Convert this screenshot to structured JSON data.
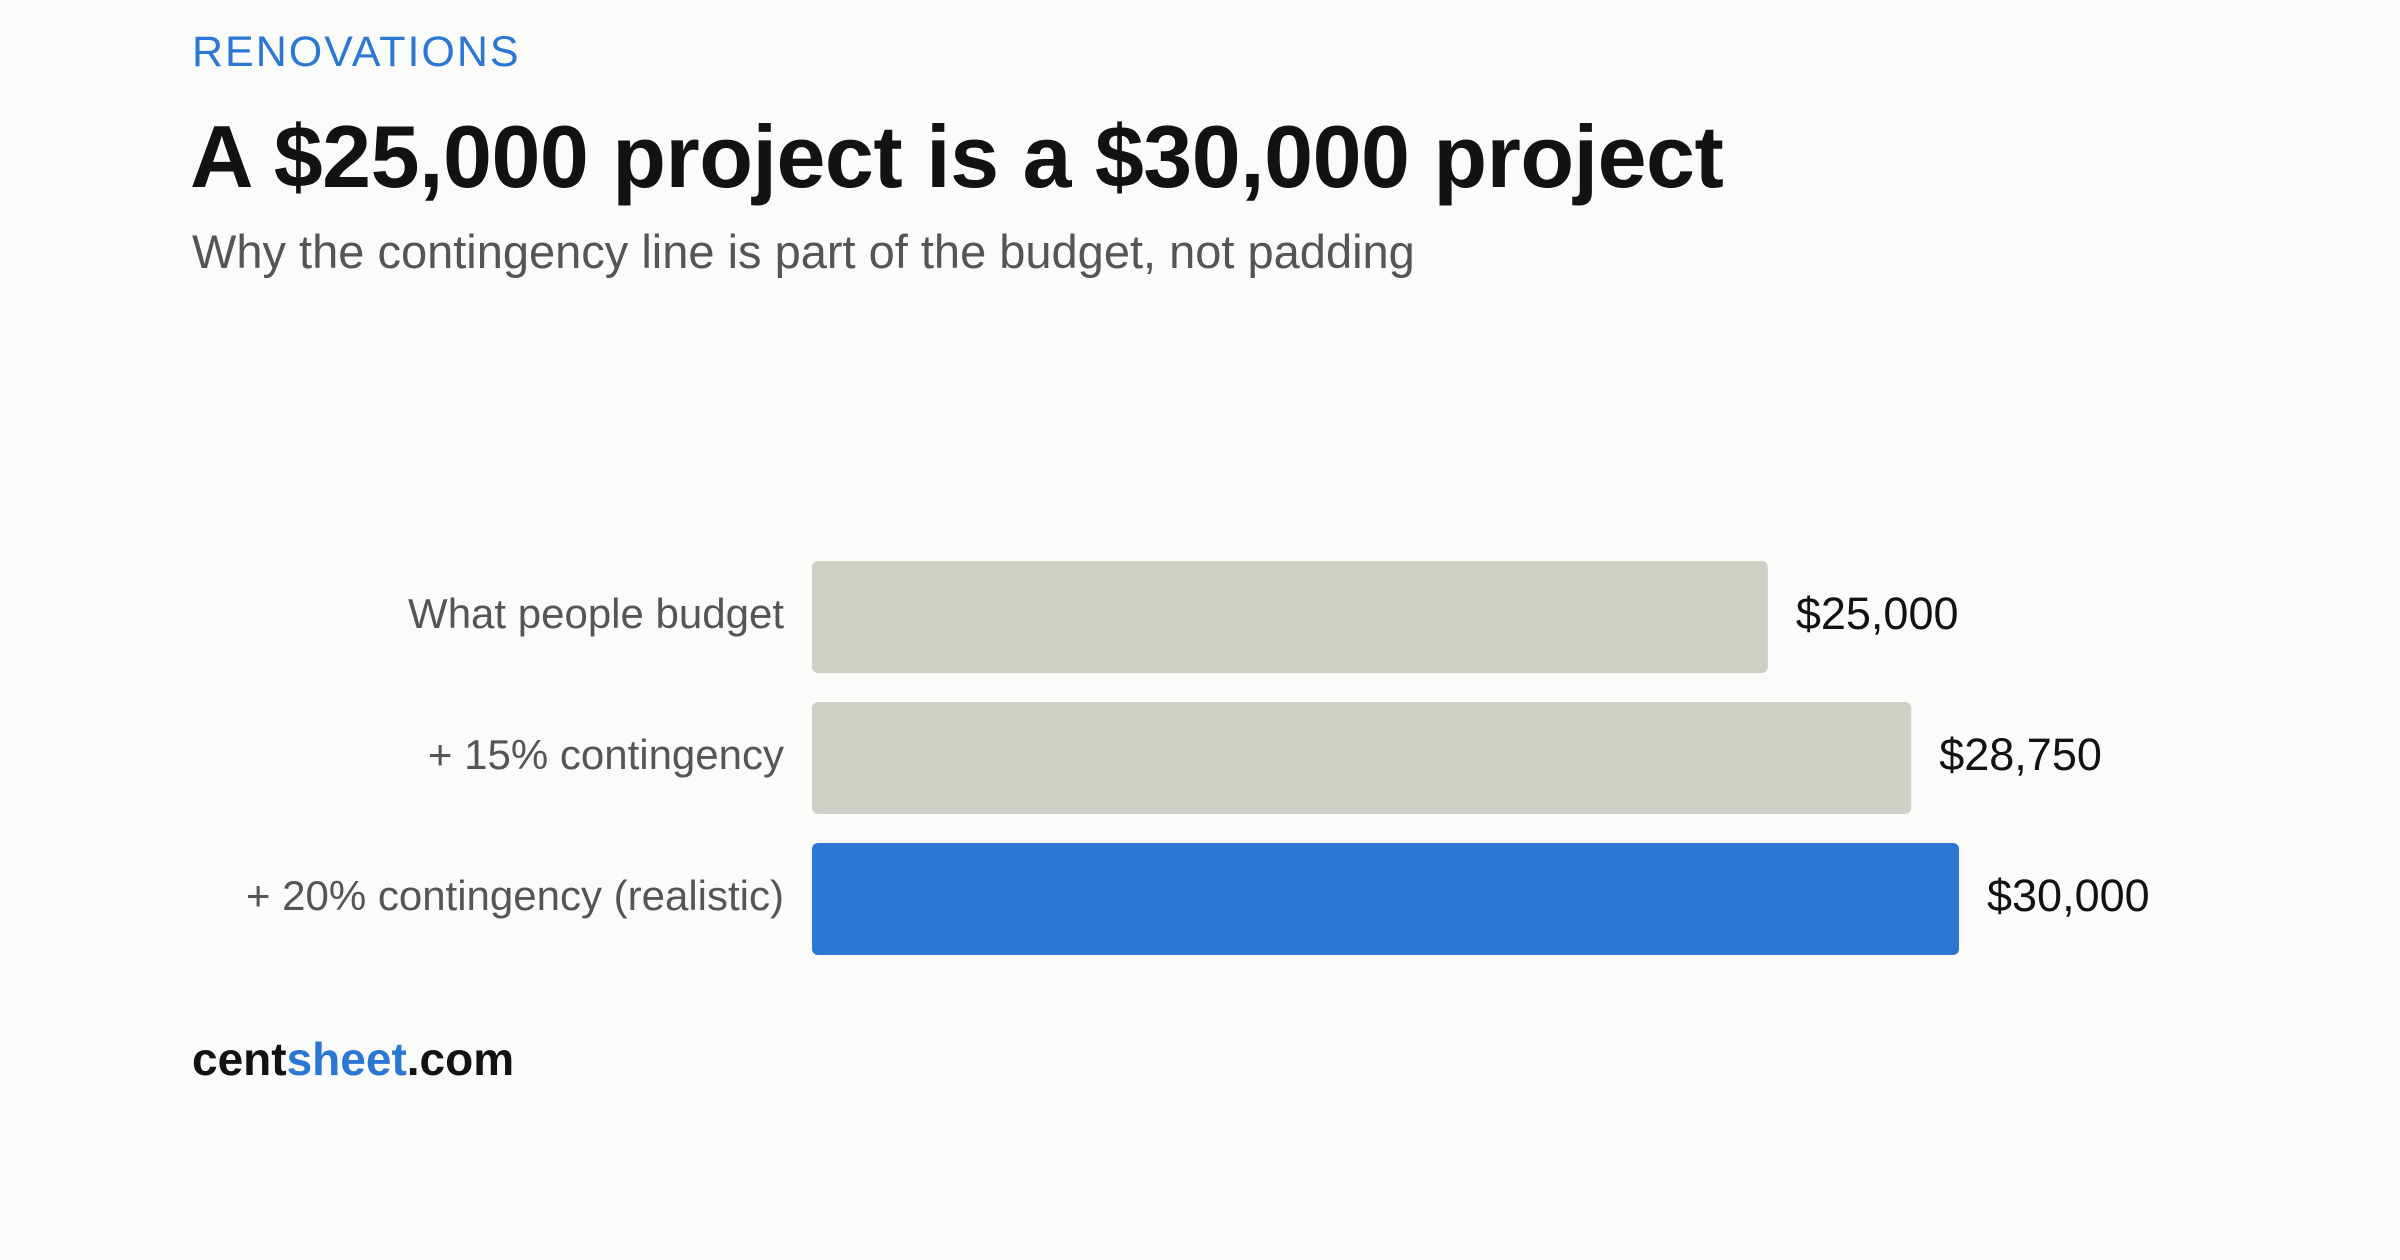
{
  "header": {
    "eyebrow": "RENOVATIONS",
    "title": "A $25,000 project is a $30,000 project",
    "subtitle": "Why the contingency line is part of the budget, not padding"
  },
  "brand": {
    "part1": "cent",
    "part2": "sheet",
    "part3": ".com"
  },
  "colors": {
    "accent": "#2b78d4",
    "neutral_bar": "#cfcfc8",
    "label": "#555555",
    "value": "#121212"
  },
  "chart_data": {
    "type": "bar",
    "orientation": "horizontal",
    "title": "",
    "xlabel": "",
    "ylabel": "",
    "xlim": [
      0,
      30000
    ],
    "grid": false,
    "legend": "none",
    "categories": [
      "What people budget",
      "+ 15% contingency",
      "+ 20% contingency (realistic)"
    ],
    "values": [
      25000,
      28750,
      30000
    ],
    "value_labels": [
      "$25,000",
      "$28,750",
      "$30,000"
    ],
    "highlight": [
      false,
      false,
      true
    ]
  }
}
